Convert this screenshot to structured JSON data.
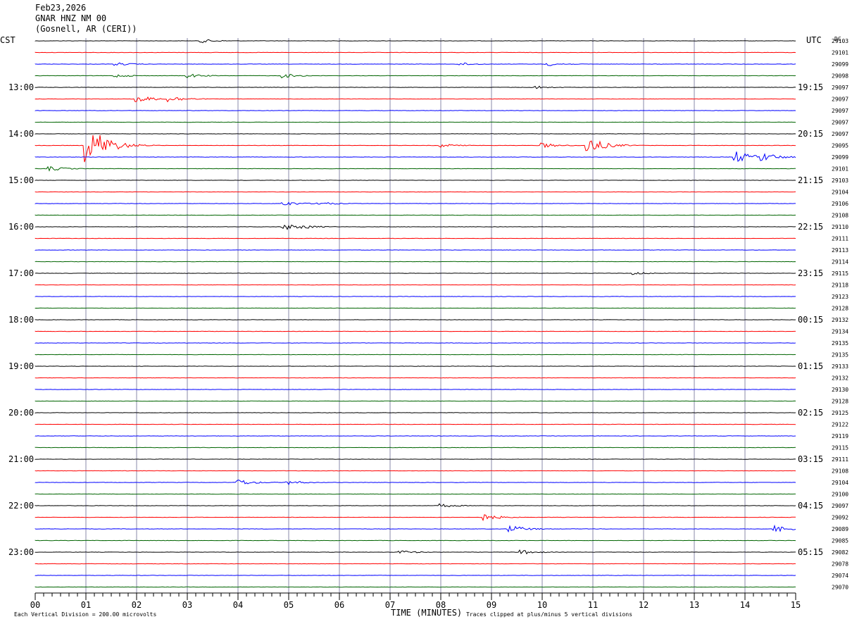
{
  "header": {
    "date": "Feb23,2026",
    "station": "GNAR HNZ NM 00",
    "location": "(Gosnell, AR (CERI))"
  },
  "left_axis_title": "CST",
  "right_axis_title": "UTC",
  "dc_title": "DC",
  "footer": {
    "vertical_division": "Each Vertical Division =  200.00 microvolts",
    "clipped_note": "Traces clipped at plus/minus 5 vertical divisions"
  },
  "colors": [
    "#000000",
    "#ff0000",
    "#0000ff",
    "#006400"
  ],
  "chart_data": {
    "type": "line",
    "title": "GNAR HNZ NM 00",
    "xlabel": "TIME (MINUTES)",
    "xlim": [
      0,
      15
    ],
    "x_ticks": [
      "00",
      "01",
      "02",
      "03",
      "04",
      "05",
      "06",
      "07",
      "08",
      "09",
      "10",
      "11",
      "12",
      "13",
      "14",
      "15"
    ],
    "left_time_labels": [
      "13:00",
      "14:00",
      "15:00",
      "16:00",
      "17:00",
      "18:00",
      "19:00",
      "20:00",
      "21:00",
      "22:00",
      "23:00"
    ],
    "right_time_labels": [
      "19:15",
      "20:15",
      "21:15",
      "22:15",
      "23:15",
      "00:15",
      "01:15",
      "02:15",
      "03:15",
      "04:15",
      "05:15"
    ],
    "dc_offsets": [
      29103,
      29101,
      29099,
      29098,
      29097,
      29097,
      29097,
      29097,
      29097,
      29095,
      29099,
      29101,
      29103,
      29104,
      29106,
      29108,
      29110,
      29111,
      29113,
      29114,
      29115,
      29118,
      29123,
      29128,
      29132,
      29134,
      29135,
      29135,
      29133,
      29132,
      29130,
      29128,
      29125,
      29122,
      29119,
      29115,
      29111,
      29108,
      29104,
      29100,
      29097,
      29092,
      29089,
      29085,
      29082,
      29078,
      29074,
      29070
    ],
    "trace_count": 48,
    "events": [
      {
        "trace": 0,
        "minute": 3.3,
        "amp": 0.3
      },
      {
        "trace": 2,
        "minute": 1.6,
        "amp": 0.25
      },
      {
        "trace": 2,
        "minute": 8.4,
        "amp": 0.25
      },
      {
        "trace": 2,
        "minute": 10.1,
        "amp": 0.3
      },
      {
        "trace": 3,
        "minute": 1.6,
        "amp": 0.25
      },
      {
        "trace": 3,
        "minute": 3.0,
        "amp": 0.35
      },
      {
        "trace": 3,
        "minute": 4.9,
        "amp": 0.35
      },
      {
        "trace": 4,
        "minute": 9.8,
        "amp": 0.3
      },
      {
        "trace": 5,
        "minute": 2.0,
        "amp": 0.6
      },
      {
        "trace": 5,
        "minute": 2.65,
        "amp": 0.5
      },
      {
        "trace": 9,
        "minute": 1.0,
        "amp": 2.8
      },
      {
        "trace": 9,
        "minute": 1.3,
        "amp": 1.8
      },
      {
        "trace": 9,
        "minute": 8.0,
        "amp": 0.3
      },
      {
        "trace": 9,
        "minute": 10.0,
        "amp": 0.4
      },
      {
        "trace": 9,
        "minute": 10.9,
        "amp": 1.3
      },
      {
        "trace": 10,
        "minute": 13.8,
        "amp": 1.0
      },
      {
        "trace": 10,
        "minute": 14.3,
        "amp": 0.8
      },
      {
        "trace": 11,
        "minute": 0.3,
        "amp": 0.35
      },
      {
        "trace": 14,
        "minute": 4.9,
        "amp": 0.4
      },
      {
        "trace": 14,
        "minute": 5.6,
        "amp": 0.3
      },
      {
        "trace": 16,
        "minute": 4.9,
        "amp": 0.5
      },
      {
        "trace": 16,
        "minute": 5.3,
        "amp": 0.3
      },
      {
        "trace": 20,
        "minute": 11.8,
        "amp": 0.25
      },
      {
        "trace": 38,
        "minute": 4.0,
        "amp": 0.5
      },
      {
        "trace": 38,
        "minute": 4.95,
        "amp": 0.4
      },
      {
        "trace": 40,
        "minute": 8.0,
        "amp": 0.3
      },
      {
        "trace": 41,
        "minute": 8.8,
        "amp": 0.6
      },
      {
        "trace": 42,
        "minute": 9.35,
        "amp": 0.6
      },
      {
        "trace": 42,
        "minute": 14.6,
        "amp": 0.5
      },
      {
        "trace": 44,
        "minute": 7.2,
        "amp": 0.3
      },
      {
        "trace": 44,
        "minute": 9.6,
        "amp": 0.35
      }
    ]
  }
}
